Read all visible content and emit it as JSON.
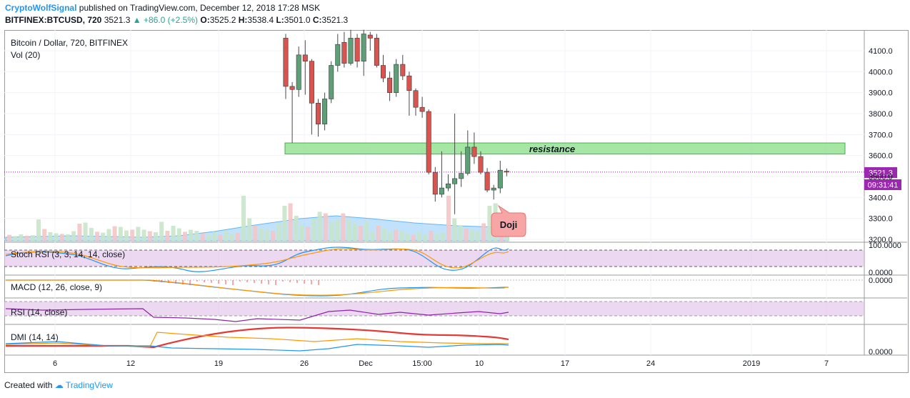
{
  "header": {
    "author": "CryptoWolfSignal",
    "published_text": "published on TradingView.com, December 12, 2018 17:28 MSK",
    "symbol": "BITFINEX:BTCUSD, 720",
    "last": "3521.3",
    "change": "▲ +86.0 (+2.5%)",
    "o_label": "O:",
    "o_value": "3525.2",
    "h_label": "H:",
    "h_value": "3538.4",
    "l_label": "L:",
    "l_value": "3501.0",
    "c_label": "C:",
    "c_value": "3521.3"
  },
  "main_pane": {
    "title": "Bitcoin / Dollar, 720, BITFINEX",
    "vol_label": "Vol (20)",
    "price_badge": "3521.3",
    "countdown_badge": "09:31:41",
    "resistance_label": "resistance",
    "doji_label": "Doji"
  },
  "indicators": {
    "stoch_label": "Stoch RSI (3, 3, 14, 14, close)",
    "macd_label": "MACD (12, 26, close, 9)",
    "rsi_label": "RSI (14, close)",
    "dmi_label": "DMI (14, 14)"
  },
  "footer": {
    "created_with": "Created with",
    "brand": "TradingView"
  },
  "colors": {
    "up": "#26a69a",
    "down": "#ef5350",
    "resistance": "#8ee08e",
    "accent": "#9c27b0"
  },
  "chart_data": {
    "type": "candlestick",
    "y_ticks": [
      "4100.0",
      "4000.0",
      "3900.0",
      "3800.0",
      "3700.0",
      "3600.0",
      "3500.0",
      "3400.0",
      "3300.0",
      "3200.0"
    ],
    "x_ticks": [
      "6",
      "12",
      "19",
      "26",
      "Dec",
      "15:00",
      "10",
      "17",
      "24",
      "2019",
      "7"
    ],
    "stoch_ticks": [
      "100.0000",
      "0.0000"
    ],
    "macd_ticks": [
      "0.0000"
    ],
    "dmi_ticks": [
      "0.0000"
    ],
    "resistance_zone": [
      3607,
      3660
    ],
    "candles": [
      [
        4160,
        4180,
        3870,
        3930
      ],
      [
        3930,
        3950,
        3660,
        3915
      ],
      [
        3915,
        4120,
        3880,
        4080
      ],
      [
        4080,
        4150,
        3890,
        4050
      ],
      [
        4050,
        4060,
        3700,
        3850
      ],
      [
        3850,
        3870,
        3690,
        3750
      ],
      [
        3750,
        3900,
        3720,
        3870
      ],
      [
        3870,
        4050,
        3850,
        4030
      ],
      [
        4030,
        4180,
        4000,
        4130
      ],
      [
        4140,
        4190,
        4020,
        4040
      ],
      [
        4040,
        4200,
        4030,
        4160
      ],
      [
        4160,
        4180,
        4020,
        4050
      ],
      [
        4050,
        4200,
        3980,
        4180
      ],
      [
        4175,
        4190,
        4100,
        4160
      ],
      [
        4160,
        4180,
        4020,
        4030
      ],
      [
        4030,
        4080,
        3950,
        3970
      ],
      [
        3970,
        4000,
        3860,
        3900
      ],
      [
        3900,
        4060,
        3880,
        4035
      ],
      [
        4035,
        4080,
        3960,
        3980
      ],
      [
        3980,
        4000,
        3790,
        3910
      ],
      [
        3910,
        3920,
        3790,
        3830
      ],
      [
        3830,
        3880,
        3780,
        3810
      ],
      [
        3810,
        3820,
        3510,
        3520
      ],
      [
        3520,
        3545,
        3380,
        3415
      ],
      [
        3415,
        3620,
        3400,
        3445
      ],
      [
        3445,
        3510,
        3430,
        3465
      ],
      [
        3465,
        3800,
        3320,
        3490
      ],
      [
        3490,
        3620,
        3450,
        3515
      ],
      [
        3515,
        3720,
        3505,
        3640
      ],
      [
        3640,
        3710,
        3560,
        3595
      ],
      [
        3595,
        3620,
        3510,
        3520
      ],
      [
        3520,
        3540,
        3425,
        3435
      ],
      [
        3435,
        3460,
        3390,
        3445
      ],
      [
        3445,
        3575,
        3420,
        3530
      ],
      [
        3525,
        3538,
        3501,
        3521
      ]
    ],
    "volumes": [
      0.18,
      0.12,
      0.2,
      0.14,
      0.16,
      0.9,
      0.45,
      0.3,
      0.25,
      0.22,
      0.2,
      0.35,
      0.7,
      0.75,
      0.5,
      0.32,
      0.28,
      0.45,
      0.58,
      0.55,
      0.38,
      0.42,
      0.55,
      0.42,
      0.35,
      0.3,
      0.38,
      0.2,
      0.3,
      0.25,
      0.18,
      0.22,
      0.2,
      0.15,
      0.12
    ]
  }
}
